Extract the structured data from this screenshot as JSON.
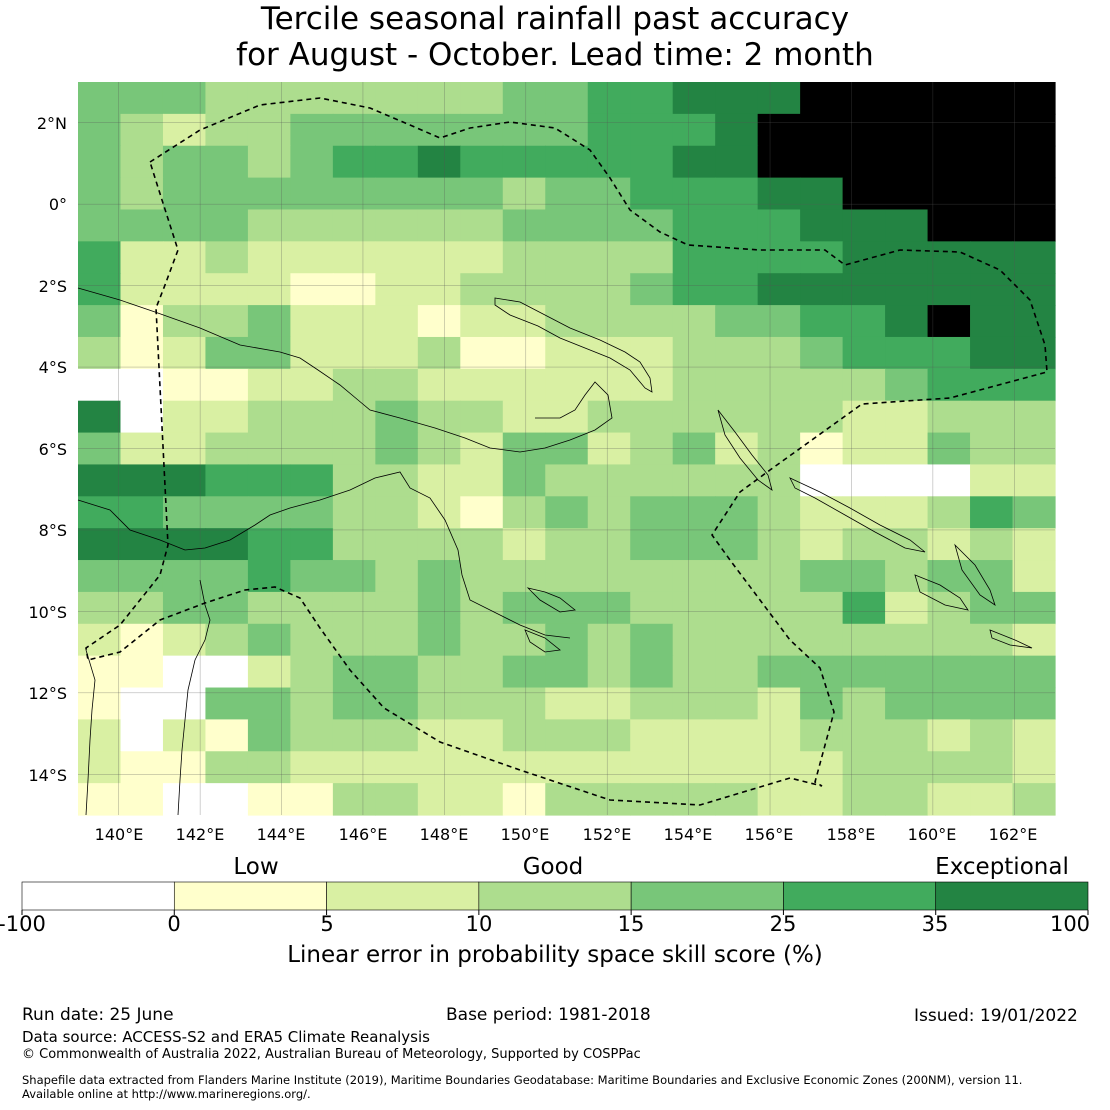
{
  "title": {
    "line1": "Tercile seasonal rainfall past accuracy",
    "line2": "for August - October. Lead time: 2 month"
  },
  "map": {
    "lat_ticks": [
      "2°N",
      "0°",
      "2°S",
      "4°S",
      "6°S",
      "8°S",
      "10°S",
      "12°S",
      "14°S"
    ],
    "lon_ticks": [
      "140°E",
      "142°E",
      "144°E",
      "146°E",
      "148°E",
      "150°E",
      "152°E",
      "154°E",
      "156°E",
      "158°E",
      "160°E",
      "162°E"
    ],
    "lon_range": [
      139.0,
      163.0
    ],
    "lat_range": [
      -15.0,
      3.0
    ],
    "grid": true,
    "skill_grid": [
      "44433333334455666777777",
      "43233444444455567777777",
      "43443455655555667777777",
      "43444444443445556677777",
      "44443333334444555666777",
      "52232222223333555566666",
      "52222112233334556666666",
      "41334222122333344556766",
      "31244222311222333455566",
      "00112233222222333334555",
      "60223334332233333322333",
      "42233334324423423122433",
      "66655533224333333000022",
      "55444433213434443222354",
      "66665533332334443233232",
      "44445443433333333443442",
      "33443333434443333352344",
      "21234333433434333333332",
      "11002344334434334444444",
      "10044344333223332434444",
      "20214333223332222333232",
      "21133222222222222233332",
      "11001133221333332233223"
    ]
  },
  "colorbar": {
    "ticks": [
      "-100",
      "0",
      "5",
      "10",
      "15",
      "25",
      "35",
      "100"
    ],
    "colors": [
      "#ffffff",
      "#ffffcc",
      "#d9f0a3",
      "#addd8e",
      "#78c679",
      "#41ab5d",
      "#238443"
    ],
    "categories": [
      "Low",
      "Good",
      "Exceptional"
    ],
    "label": "Linear error in probability space skill score (%)"
  },
  "footer": {
    "run_date": "Run date: 25 June",
    "base_period": "Base period: 1981-2018",
    "issued": "Issued: 19/01/2022",
    "data_source": "Data source: ACCESS-S2 and ERA5 Climate Reanalysis",
    "copyright": "© Commonwealth of Australia 2022, Australian Bureau of Meteorology, Supported by COSPPac",
    "shapefile_line1": "Shapefile data extracted from Flanders Marine Institute (2019), Maritime Boundaries Geodatabase: Maritime Boundaries and Exclusive Economic Zones (200NM), version 11.",
    "shapefile_line2": "Available online at http://www.marineregions.org/."
  }
}
